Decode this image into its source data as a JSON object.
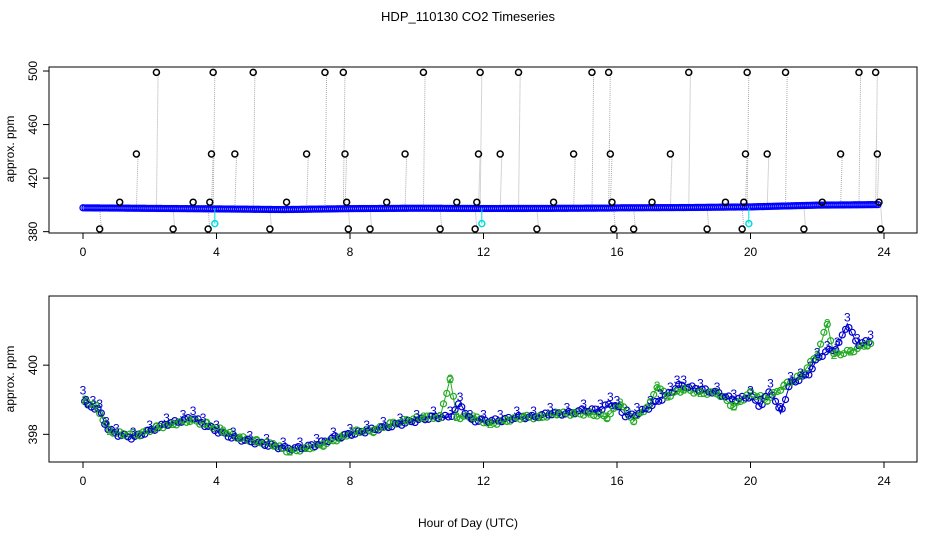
{
  "title": "HDP_110130  CO2 Timeseries",
  "xlabel": "Hour of Day (UTC)",
  "chart_data": [
    {
      "type": "scatter",
      "ylabel": "approx. ppm",
      "xlim": [
        0,
        24
      ],
      "ylim": [
        379,
        503
      ],
      "x_ticks": [
        "0",
        "4",
        "8",
        "12",
        "16",
        "20",
        "24"
      ],
      "y_ticks": [
        "380",
        "420",
        "460",
        "500"
      ],
      "x_tick_values": [
        0,
        4,
        8,
        12,
        16,
        20,
        24
      ],
      "y_tick_values": [
        380,
        420,
        460,
        500
      ],
      "baseline": {
        "x": [
          0,
          2,
          4,
          6,
          8,
          10,
          12,
          14,
          15.8,
          16.1,
          18,
          20,
          22,
          23.8
        ],
        "y": [
          397.8,
          397.4,
          397.0,
          396.5,
          397.2,
          397.5,
          397.3,
          397.4,
          397.6,
          397.8,
          398.0,
          398.5,
          399.8,
          400.2
        ]
      },
      "spike_points": [
        {
          "x": 0.5,
          "y": 382
        },
        {
          "x": 1.1,
          "y": 402
        },
        {
          "x": 1.6,
          "y": 438
        },
        {
          "x": 2.2,
          "y": 499
        },
        {
          "x": 2.7,
          "y": 382
        },
        {
          "x": 3.3,
          "y": 402
        },
        {
          "x": 3.75,
          "y": 382
        },
        {
          "x": 3.8,
          "y": 402
        },
        {
          "x": 3.85,
          "y": 438
        },
        {
          "x": 3.9,
          "y": 499
        },
        {
          "x": 4.55,
          "y": 438
        },
        {
          "x": 5.1,
          "y": 499
        },
        {
          "x": 5.6,
          "y": 382
        },
        {
          "x": 6.1,
          "y": 402
        },
        {
          "x": 6.7,
          "y": 438
        },
        {
          "x": 7.25,
          "y": 499
        },
        {
          "x": 7.8,
          "y": 499
        },
        {
          "x": 7.85,
          "y": 438
        },
        {
          "x": 7.9,
          "y": 402
        },
        {
          "x": 7.95,
          "y": 382
        },
        {
          "x": 8.6,
          "y": 382
        },
        {
          "x": 9.1,
          "y": 402
        },
        {
          "x": 9.65,
          "y": 438
        },
        {
          "x": 10.2,
          "y": 499
        },
        {
          "x": 10.7,
          "y": 382
        },
        {
          "x": 11.2,
          "y": 402
        },
        {
          "x": 11.75,
          "y": 382
        },
        {
          "x": 11.8,
          "y": 402
        },
        {
          "x": 11.85,
          "y": 438
        },
        {
          "x": 11.9,
          "y": 499
        },
        {
          "x": 12.5,
          "y": 438
        },
        {
          "x": 13.05,
          "y": 499
        },
        {
          "x": 13.6,
          "y": 382
        },
        {
          "x": 14.1,
          "y": 402
        },
        {
          "x": 14.7,
          "y": 438
        },
        {
          "x": 15.25,
          "y": 499
        },
        {
          "x": 15.75,
          "y": 499
        },
        {
          "x": 15.8,
          "y": 438
        },
        {
          "x": 15.85,
          "y": 402
        },
        {
          "x": 15.9,
          "y": 382
        },
        {
          "x": 16.5,
          "y": 382
        },
        {
          "x": 17.05,
          "y": 402
        },
        {
          "x": 17.6,
          "y": 438
        },
        {
          "x": 18.15,
          "y": 499
        },
        {
          "x": 18.7,
          "y": 382
        },
        {
          "x": 19.25,
          "y": 402
        },
        {
          "x": 19.75,
          "y": 382
        },
        {
          "x": 19.8,
          "y": 402
        },
        {
          "x": 19.85,
          "y": 438
        },
        {
          "x": 19.9,
          "y": 499
        },
        {
          "x": 20.5,
          "y": 438
        },
        {
          "x": 21.05,
          "y": 499
        },
        {
          "x": 21.6,
          "y": 382
        },
        {
          "x": 22.15,
          "y": 402
        },
        {
          "x": 22.7,
          "y": 438
        },
        {
          "x": 23.25,
          "y": 499
        },
        {
          "x": 23.75,
          "y": 499
        },
        {
          "x": 23.8,
          "y": 438
        },
        {
          "x": 23.85,
          "y": 402
        },
        {
          "x": 23.9,
          "y": 382
        }
      ],
      "cyan_points": [
        {
          "x": 3.95,
          "y": 386
        },
        {
          "x": 11.95,
          "y": 386
        },
        {
          "x": 19.95,
          "y": 386
        }
      ],
      "colors": {
        "baseline": "#0000ff",
        "spikes": "#000000",
        "cyan": "#00dddd",
        "spike_lines": "#aaaaaa"
      }
    },
    {
      "type": "scatter",
      "ylabel": "approx. ppm",
      "xlim": [
        0,
        24
      ],
      "ylim": [
        397.2,
        402.0
      ],
      "x_ticks": [
        "0",
        "4",
        "8",
        "12",
        "16",
        "20",
        "24"
      ],
      "y_ticks": [
        "398",
        "400"
      ],
      "x_tick_values": [
        0,
        4,
        8,
        12,
        16,
        20,
        24
      ],
      "y_tick_values": [
        398,
        400
      ],
      "series_blue": {
        "x": [
          0.0,
          0.1,
          0.3,
          0.5,
          0.7,
          1.0,
          1.5,
          2.0,
          2.5,
          3.0,
          3.3,
          3.6,
          4.0,
          4.5,
          5.0,
          5.5,
          6.0,
          6.5,
          7.0,
          7.5,
          8.0,
          8.5,
          9.0,
          9.5,
          10.0,
          10.5,
          11.0,
          11.3,
          11.6,
          12.0,
          12.5,
          13.0,
          13.5,
          14.0,
          14.5,
          15.0,
          15.5,
          15.8,
          16.0,
          16.3,
          16.6,
          17.0,
          17.3,
          17.6,
          17.8,
          18.0,
          18.5,
          19.0,
          19.5,
          20.0,
          20.3,
          20.6,
          20.9,
          21.2,
          21.5,
          21.8,
          22.0,
          22.3,
          22.6,
          22.9,
          23.2,
          23.6
        ],
        "y": [
          399.1,
          398.8,
          398.8,
          398.7,
          398.2,
          398.0,
          397.9,
          398.1,
          398.3,
          398.4,
          398.5,
          398.3,
          398.1,
          397.9,
          397.8,
          397.7,
          397.6,
          397.6,
          397.7,
          397.9,
          398.0,
          398.1,
          398.2,
          398.3,
          398.4,
          398.5,
          398.5,
          398.9,
          398.4,
          398.4,
          398.4,
          398.5,
          398.5,
          398.6,
          398.6,
          398.7,
          398.7,
          398.9,
          398.8,
          398.5,
          398.6,
          398.8,
          399.0,
          399.2,
          399.4,
          399.4,
          399.3,
          399.2,
          399.0,
          399.1,
          398.8,
          399.3,
          398.6,
          399.5,
          399.6,
          399.8,
          400.2,
          400.4,
          400.5,
          401.2,
          400.6,
          400.7
        ]
      },
      "series_green": {
        "x": [
          0.05,
          0.4,
          0.8,
          1.2,
          1.7,
          2.2,
          2.7,
          3.2,
          3.7,
          4.2,
          4.7,
          5.2,
          5.7,
          6.2,
          6.7,
          7.2,
          7.7,
          8.2,
          8.7,
          9.2,
          9.7,
          10.2,
          10.7,
          11.0,
          11.2,
          11.7,
          12.2,
          12.7,
          13.2,
          13.7,
          14.2,
          14.7,
          15.2,
          15.7,
          16.1,
          16.5,
          17.0,
          17.2,
          17.5,
          18.0,
          18.5,
          19.0,
          19.5,
          20.0,
          20.5,
          21.0,
          21.5,
          22.0,
          22.3,
          22.5,
          23.0,
          23.5
        ],
        "y": [
          399.0,
          398.8,
          398.1,
          398.0,
          398.0,
          398.2,
          398.3,
          398.4,
          398.3,
          398.1,
          397.9,
          397.8,
          397.7,
          397.5,
          397.6,
          397.7,
          397.9,
          398.1,
          398.1,
          398.3,
          398.4,
          398.5,
          398.5,
          399.6,
          398.5,
          398.5,
          398.3,
          398.4,
          398.5,
          398.5,
          398.6,
          398.6,
          398.6,
          398.5,
          398.9,
          398.4,
          398.9,
          399.4,
          399.1,
          399.3,
          399.2,
          399.2,
          398.8,
          399.2,
          399.0,
          399.4,
          399.7,
          400.3,
          401.2,
          400.3,
          400.4,
          400.6
        ]
      },
      "colors": {
        "blue": "#0000cc",
        "green": "#22aa22"
      }
    }
  ]
}
